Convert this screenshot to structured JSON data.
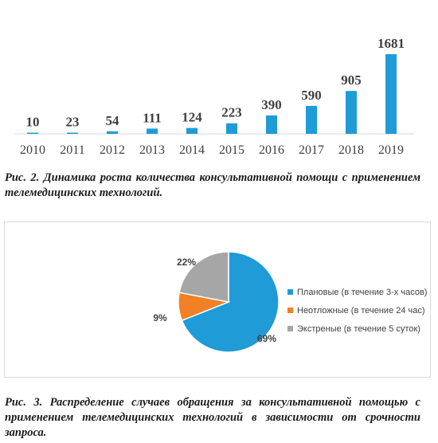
{
  "chart_data": [
    {
      "type": "bar",
      "categories": [
        "2010",
        "2011",
        "2012",
        "2013",
        "2014",
        "2015",
        "2016",
        "2017",
        "2018",
        "2019"
      ],
      "values": [
        10,
        23,
        54,
        111,
        124,
        223,
        390,
        590,
        905,
        1681
      ],
      "title": "",
      "xlabel": "",
      "ylabel": "",
      "ylim": [
        0,
        1800
      ],
      "grid": false,
      "legend": "none",
      "color": "#1f9bd7"
    },
    {
      "type": "pie",
      "labels": [
        "Плановые (в течение 3-х часов)",
        "Неотложные (в течение 24 час)",
        "Экстреные (в течение 5 суток)"
      ],
      "values": [
        69,
        9,
        22
      ],
      "value_labels": [
        "69%",
        "9%",
        "22%"
      ],
      "colors": [
        "#1f9bd7",
        "#f28024",
        "#a6a6a6"
      ],
      "legend": "right",
      "title": ""
    }
  ],
  "captions": {
    "fig2": "Рис. 2. Динамика роста количества консультативной помощи с применением телемедицинских технологий.",
    "fig3": "Рис. 3. Распределение случаев обращения за консультативной помощью с применением телемедицинских технологий в зависимости от срочности запроса."
  }
}
